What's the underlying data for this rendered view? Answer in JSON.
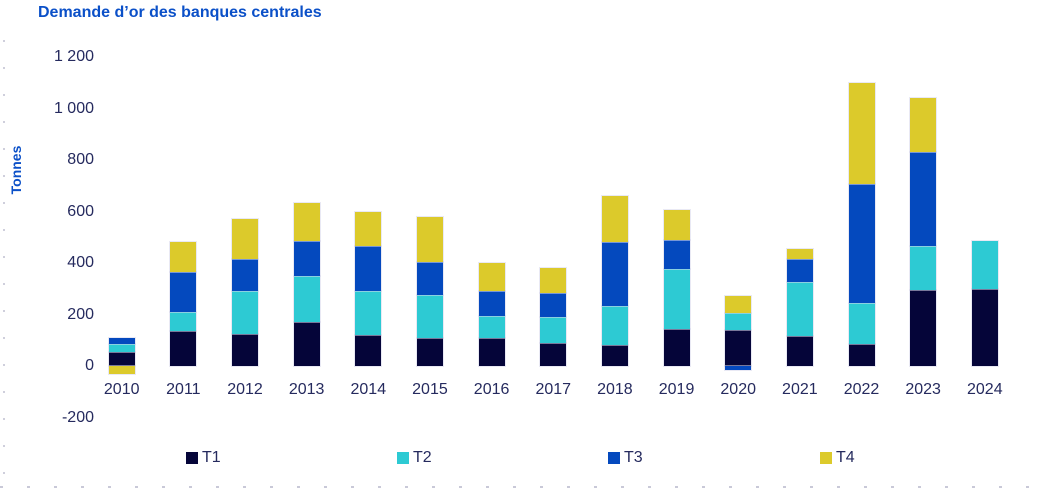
{
  "title": "Demande d’or des banques centrales",
  "colors": {
    "t1": "#050539",
    "t2": "#2dcad3",
    "t3": "#0449be",
    "t4": "#dcca2b",
    "title_text": "#0b50c8",
    "ylabel_text": "#0b50c8",
    "axis_text": "#252a5e"
  },
  "chart_data": {
    "type": "bar",
    "stacked": true,
    "title": "Demande d’or des banques centrales",
    "xlabel": "",
    "ylabel": "Tonnes",
    "unit": "tonnes",
    "ylim": [
      -200,
      1200
    ],
    "grid": false,
    "legend_position": "bottom",
    "categories": [
      "2010",
      "2011",
      "2012",
      "2013",
      "2014",
      "2015",
      "2016",
      "2017",
      "2018",
      "2019",
      "2020",
      "2021",
      "2022",
      "2023",
      "2024"
    ],
    "series": [
      {
        "name": "T1",
        "key": "t1",
        "values": [
          55,
          135,
          125,
          170,
          120,
          110,
          110,
          90,
          80,
          145,
          140,
          115,
          85,
          295,
          300
        ]
      },
      {
        "name": "T2",
        "key": "t2",
        "values": [
          30,
          75,
          165,
          180,
          170,
          165,
          85,
          100,
          155,
          230,
          65,
          210,
          160,
          170,
          185
        ]
      },
      {
        "name": "T3",
        "key": "t3",
        "values": [
          25,
          155,
          125,
          135,
          175,
          130,
          95,
          95,
          245,
          115,
          -15,
          90,
          460,
          365,
          null
        ]
      },
      {
        "name": "T4",
        "key": "t4",
        "values": [
          -30,
          115,
          155,
          150,
          135,
          175,
          110,
          95,
          180,
          115,
          65,
          40,
          395,
          210,
          null
        ]
      }
    ],
    "totals": [
      80,
      480,
      570,
      635,
      600,
      580,
      400,
      380,
      660,
      605,
      255,
      455,
      1100,
      1040,
      485
    ],
    "yticks": [
      {
        "label": "1 200",
        "value": 1200
      },
      {
        "label": "1 000",
        "value": 1000
      },
      {
        "label": "800",
        "value": 800
      },
      {
        "label": "600",
        "value": 600
      },
      {
        "label": "400",
        "value": 400
      },
      {
        "label": "200",
        "value": 200
      },
      {
        "label": "0",
        "value": 0
      },
      {
        "label": "-200",
        "value": -200
      }
    ]
  }
}
